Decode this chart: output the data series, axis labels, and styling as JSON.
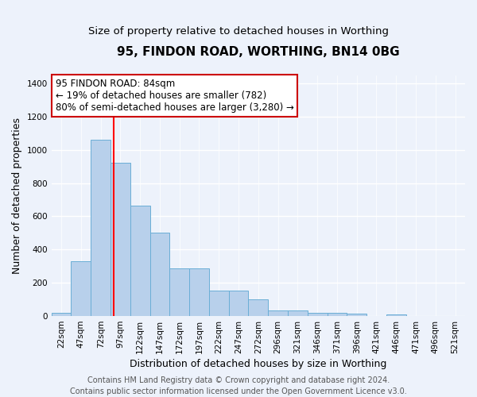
{
  "title": "95, FINDON ROAD, WORTHING, BN14 0BG",
  "subtitle": "Size of property relative to detached houses in Worthing",
  "xlabel": "Distribution of detached houses by size in Worthing",
  "ylabel": "Number of detached properties",
  "categories": [
    "22sqm",
    "47sqm",
    "72sqm",
    "97sqm",
    "122sqm",
    "147sqm",
    "172sqm",
    "197sqm",
    "222sqm",
    "247sqm",
    "272sqm",
    "296sqm",
    "321sqm",
    "346sqm",
    "371sqm",
    "396sqm",
    "421sqm",
    "446sqm",
    "471sqm",
    "496sqm",
    "521sqm"
  ],
  "values": [
    20,
    330,
    1060,
    920,
    665,
    500,
    285,
    285,
    155,
    155,
    100,
    35,
    35,
    20,
    20,
    15,
    0,
    10,
    0,
    0,
    0
  ],
  "bar_color": "#b8d0eb",
  "bar_edge_color": "#6aaed6",
  "background_color": "#edf2fb",
  "grid_color": "#ffffff",
  "annotation_line1": "95 FINDON ROAD: 84sqm",
  "annotation_line2": "← 19% of detached houses are smaller (782)",
  "annotation_line3": "80% of semi-detached houses are larger (3,280) →",
  "annotation_box_color": "#ffffff",
  "annotation_box_edge_color": "#cc0000",
  "red_line_x": 2.68,
  "ylim": [
    0,
    1450
  ],
  "yticks": [
    0,
    200,
    400,
    600,
    800,
    1000,
    1200,
    1400
  ],
  "footer_text": "Contains HM Land Registry data © Crown copyright and database right 2024.\nContains public sector information licensed under the Open Government Licence v3.0.",
  "title_fontsize": 11,
  "subtitle_fontsize": 9.5,
  "xlabel_fontsize": 9,
  "ylabel_fontsize": 9,
  "tick_fontsize": 7.5,
  "annotation_fontsize": 8.5,
  "footer_fontsize": 7
}
